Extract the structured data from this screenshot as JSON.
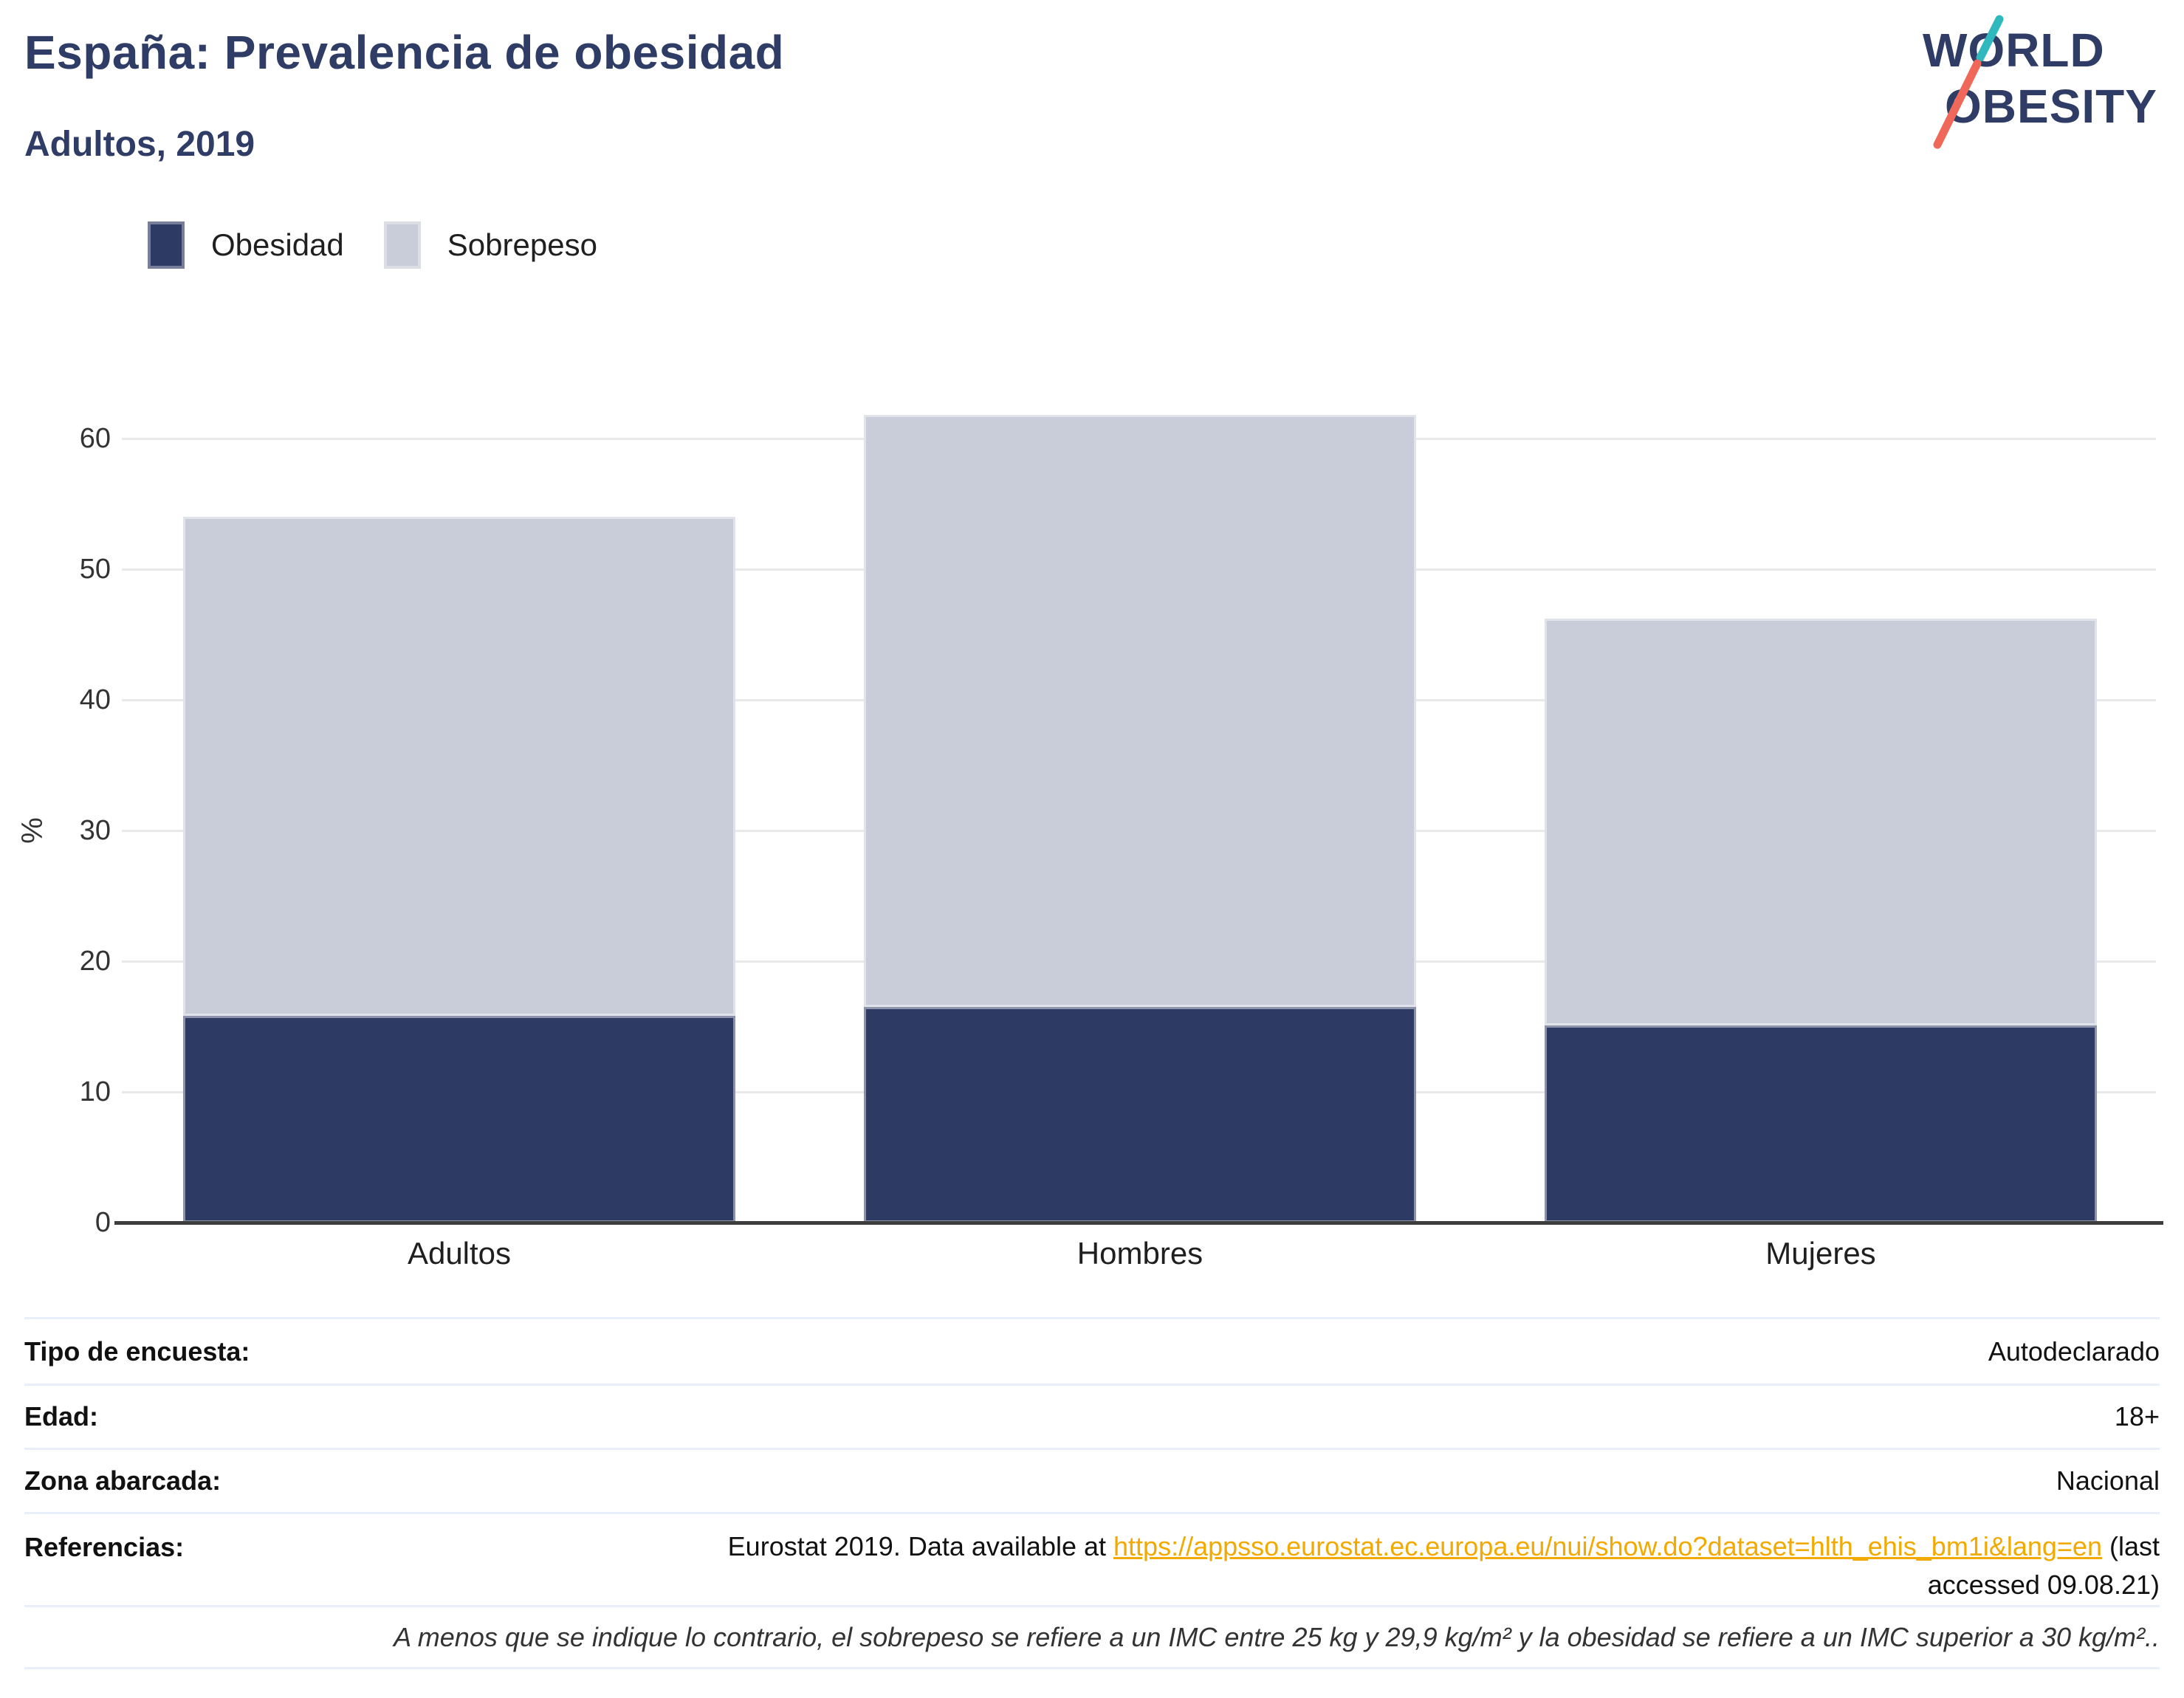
{
  "chart_data": {
    "type": "bar",
    "stacked": true,
    "title": "España: Prevalencia de obesidad",
    "subtitle": "Adultos, 2019",
    "categories": [
      "Adultos",
      "Hombres",
      "Mujeres"
    ],
    "series": [
      {
        "name": "Obesidad",
        "color": "#2d3a64",
        "values": [
          15.8,
          16.5,
          15.1
        ]
      },
      {
        "name": "Sobrepeso",
        "color": "#c9ccd9",
        "values": [
          38.2,
          45.3,
          31.1
        ]
      }
    ],
    "stack_totals": [
      54.0,
      61.8,
      46.2
    ],
    "ylabel": "%",
    "ylim": [
      0,
      65
    ],
    "yticks": [
      0,
      10,
      20,
      30,
      40,
      50,
      60
    ],
    "grid": true,
    "legend_position": "top-left"
  },
  "logo": {
    "line1": "WORLD",
    "line2": "OBESITY",
    "navy": "#2e3c66",
    "teal": "#2FB8BE",
    "coral": "#F0685A"
  },
  "details": {
    "rows": [
      {
        "label": "Tipo de encuesta:",
        "value": "Autodeclarado"
      },
      {
        "label": "Edad:",
        "value": "18+"
      },
      {
        "label": "Zona abarcada:",
        "value": "Nacional"
      }
    ],
    "references": {
      "label": "Referencias:",
      "prefix": "Eurostat 2019. Data available at ",
      "link": "https://appsso.eurostat.ec.europa.eu/nui/show.do?dataset=hlth_ehis_bm1i&lang=en",
      "suffix": " (last accessed 09.08.21)"
    },
    "footnote": "A menos que se indique lo contrario, el sobrepeso se refiere a un IMC entre 25 kg y 29,9 kg/m² y la obesidad se refiere a un IMC superior a 30 kg/m².."
  }
}
